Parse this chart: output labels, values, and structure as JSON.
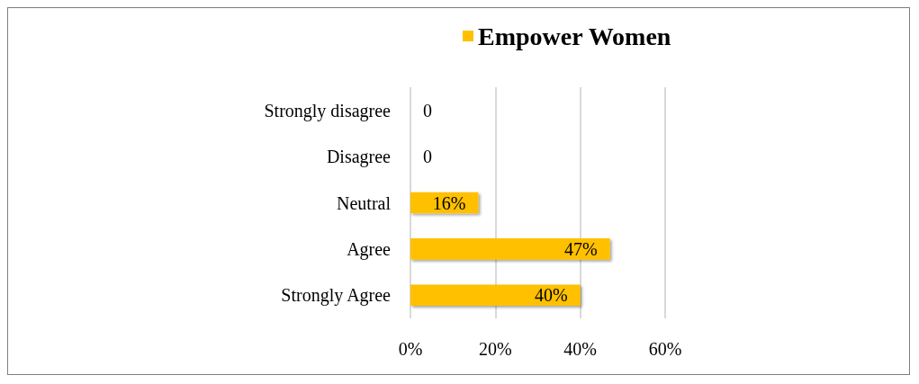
{
  "chart_data": {
    "type": "bar",
    "orientation": "horizontal",
    "categories": [
      "Strongly disagree",
      "Disagree",
      "Neutral",
      "Agree",
      "Strongly Agree"
    ],
    "series": [
      {
        "name": "Empower Women",
        "color": "#ffc000",
        "values": [
          0,
          0,
          16,
          47,
          40
        ],
        "value_labels": [
          "0",
          "0",
          "16%",
          "47%",
          "40%"
        ]
      }
    ],
    "xlim": [
      0,
      60
    ],
    "xticks": [
      {
        "value": 0,
        "label": "0%"
      },
      {
        "value": 20,
        "label": "20%"
      },
      {
        "value": 40,
        "label": "40%"
      },
      {
        "value": 60,
        "label": "60%"
      }
    ],
    "grid": "x",
    "legend": "top"
  }
}
